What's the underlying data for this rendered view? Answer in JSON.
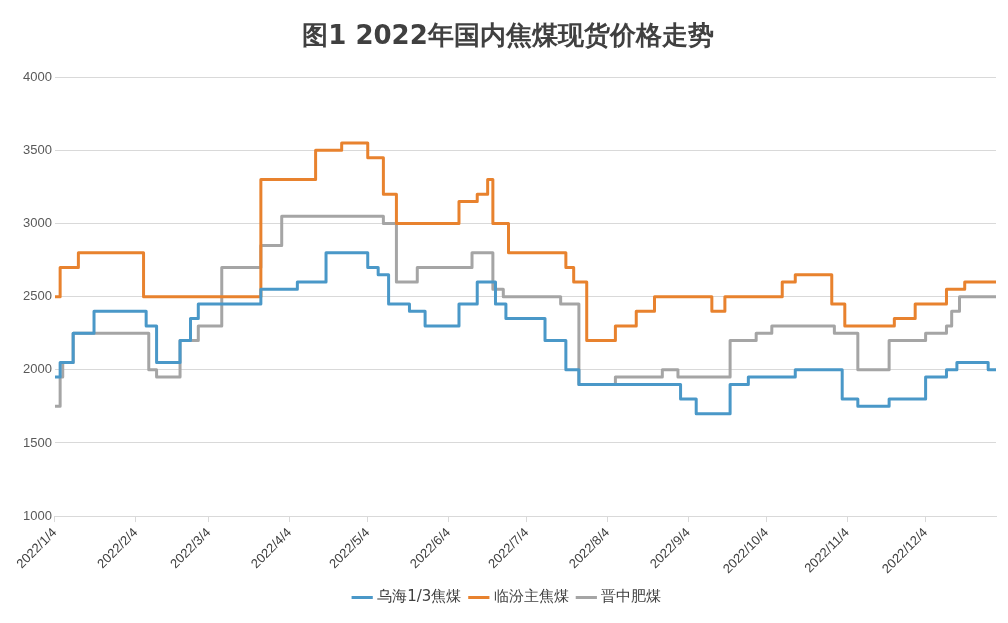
{
  "chart_data": {
    "type": "step",
    "title": "图1 2022年国内焦煤现货价格走势",
    "xlim": [
      "2022-01-04",
      "2022-12-31"
    ],
    "xticks": [
      {
        "value": "2022-01-04",
        "label": "2022/1/4"
      },
      {
        "value": "2022-02-04",
        "label": "2022/2/4"
      },
      {
        "value": "2022-03-04",
        "label": "2022/3/4"
      },
      {
        "value": "2022-04-04",
        "label": "2022/4/4"
      },
      {
        "value": "2022-05-04",
        "label": "2022/5/4"
      },
      {
        "value": "2022-06-04",
        "label": "2022/6/4"
      },
      {
        "value": "2022-07-04",
        "label": "2022/7/4"
      },
      {
        "value": "2022-08-04",
        "label": "2022/8/4"
      },
      {
        "value": "2022-09-04",
        "label": "2022/9/4"
      },
      {
        "value": "2022-10-04",
        "label": "2022/10/4"
      },
      {
        "value": "2022-11-04",
        "label": "2022/11/4"
      },
      {
        "value": "2022-12-04",
        "label": "2022/12/4"
      }
    ],
    "ylim": [
      1000,
      4000
    ],
    "yticks": [
      1000,
      1500,
      2000,
      2500,
      3000,
      3500,
      4000
    ],
    "grid": "y",
    "legend": "bottom",
    "marker": "none",
    "line_style": "solid",
    "series": [
      {
        "name": "乌海1/3焦煤",
        "color": "#4a98c8",
        "x": [
          "2022-01-04",
          "2022-01-06",
          "2022-01-11",
          "2022-01-19",
          "2022-02-08",
          "2022-02-12",
          "2022-02-21",
          "2022-02-25",
          "2022-02-28",
          "2022-03-24",
          "2022-04-07",
          "2022-04-18",
          "2022-05-04",
          "2022-05-08",
          "2022-05-12",
          "2022-05-20",
          "2022-05-26",
          "2022-06-08",
          "2022-06-15",
          "2022-06-22",
          "2022-06-26",
          "2022-07-11",
          "2022-07-19",
          "2022-07-24",
          "2022-09-01",
          "2022-09-07",
          "2022-09-20",
          "2022-09-27",
          "2022-10-15",
          "2022-11-02",
          "2022-11-08",
          "2022-11-20",
          "2022-12-04",
          "2022-12-12",
          "2022-12-16",
          "2022-12-28",
          "2022-12-31"
        ],
        "values": [
          1950,
          2050,
          2250,
          2400,
          2300,
          2050,
          2200,
          2350,
          2450,
          2550,
          2600,
          2800,
          2700,
          2650,
          2450,
          2400,
          2300,
          2450,
          2600,
          2450,
          2350,
          2200,
          2000,
          1900,
          1800,
          1700,
          1900,
          1950,
          2000,
          1800,
          1750,
          1800,
          1950,
          2000,
          2050,
          2000,
          2000
        ]
      },
      {
        "name": "临汾主焦煤",
        "color": "#e8822e",
        "x": [
          "2022-01-04",
          "2022-01-06",
          "2022-01-13",
          "2022-02-07",
          "2022-03-24",
          "2022-04-14",
          "2022-04-24",
          "2022-05-04",
          "2022-05-10",
          "2022-05-15",
          "2022-06-08",
          "2022-06-15",
          "2022-06-19",
          "2022-06-21",
          "2022-06-27",
          "2022-07-19",
          "2022-07-22",
          "2022-07-27",
          "2022-08-07",
          "2022-08-15",
          "2022-08-22",
          "2022-09-13",
          "2022-09-18",
          "2022-10-10",
          "2022-10-15",
          "2022-10-29",
          "2022-11-03",
          "2022-11-22",
          "2022-11-30",
          "2022-12-12",
          "2022-12-19",
          "2022-12-31"
        ],
        "values": [
          2500,
          2700,
          2800,
          2500,
          3300,
          3500,
          3550,
          3450,
          3200,
          3000,
          3150,
          3200,
          3300,
          3000,
          2800,
          2700,
          2600,
          2200,
          2300,
          2400,
          2500,
          2400,
          2500,
          2600,
          2650,
          2450,
          2300,
          2350,
          2450,
          2550,
          2600,
          2600
        ]
      },
      {
        "name": "晋中肥煤",
        "color": "#a5a5a5",
        "x": [
          "2022-01-04",
          "2022-01-06",
          "2022-01-07",
          "2022-01-11",
          "2022-02-09",
          "2022-02-12",
          "2022-02-21",
          "2022-02-28",
          "2022-03-09",
          "2022-03-24",
          "2022-04-01",
          "2022-05-10",
          "2022-05-15",
          "2022-05-23",
          "2022-06-13",
          "2022-06-21",
          "2022-06-25",
          "2022-07-17",
          "2022-07-24",
          "2022-08-07",
          "2022-08-25",
          "2022-08-31",
          "2022-09-20",
          "2022-09-30",
          "2022-10-06",
          "2022-10-30",
          "2022-11-08",
          "2022-11-20",
          "2022-12-04",
          "2022-12-12",
          "2022-12-14",
          "2022-12-17",
          "2022-12-31"
        ],
        "values": [
          1750,
          1950,
          2050,
          2250,
          2000,
          1950,
          2200,
          2300,
          2700,
          2850,
          3050,
          3000,
          2600,
          2700,
          2800,
          2550,
          2500,
          2450,
          1900,
          1950,
          2000,
          1950,
          2200,
          2250,
          2300,
          2250,
          2000,
          2200,
          2250,
          2300,
          2400,
          2500,
          2500
        ]
      }
    ]
  }
}
